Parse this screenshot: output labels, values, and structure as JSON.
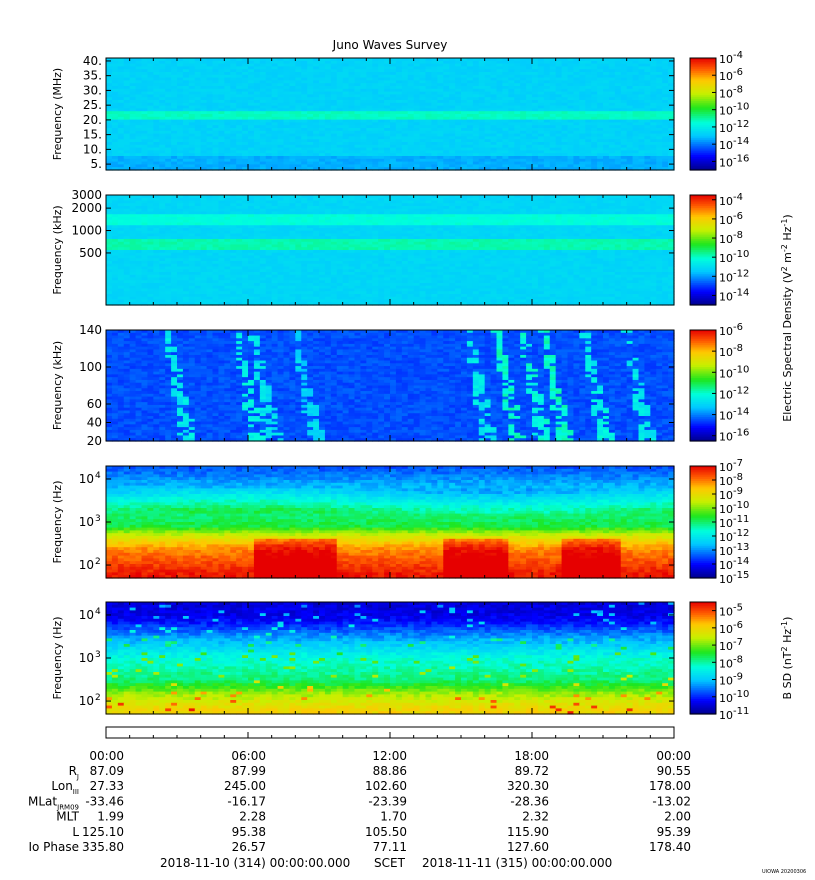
{
  "chart_data": {
    "type": "heatmap",
    "title": "Juno Waves Survey",
    "x_ticks": [
      "00:00",
      "06:00",
      "12:00",
      "18:00",
      "00:00"
    ],
    "panels": [
      {
        "ylabel": "Frequency (MHz)",
        "yticks": [
          "40.",
          "35.",
          "30.",
          "25.",
          "20.",
          "15.",
          "10.",
          "5."
        ],
        "ylim": [
          3,
          41
        ],
        "yscale": "linear",
        "colorbar": {
          "exponents": [
            "-4",
            "-6",
            "-8",
            "-10",
            "-12",
            "-14",
            "-16"
          ],
          "base": "10",
          "range_exp": [
            -17,
            -4
          ]
        },
        "background_level": -12.8,
        "bands": [
          {
            "center": 21.5,
            "width": 1.5,
            "level": -11.3
          }
        ]
      },
      {
        "ylabel": "Frequency (kHz)",
        "yticks": [
          "3000",
          "2000",
          "1000",
          "500"
        ],
        "ylim": [
          100,
          3000
        ],
        "yscale": "log",
        "colorbar": {
          "exponents": [
            "-4",
            "-6",
            "-8",
            "-10",
            "-12",
            "-14"
          ],
          "base": "10",
          "range_exp": [
            -15,
            -3.5
          ],
          "label": "Electric Spectral Density (V",
          "label_sup1": "2",
          "label_mid": " m",
          "label_sup2": "-2",
          "label_mid2": " Hz",
          "label_sup3": "-1",
          "label_end": ")"
        },
        "background_level": -11.2,
        "bands": [
          {
            "center": 1400,
            "width": 0.06,
            "level": -10.2
          },
          {
            "center": 650,
            "width": 0.07,
            "level": -9.8
          }
        ]
      },
      {
        "ylabel": "Frequency (kHz)",
        "yticks": [
          "140",
          "100",
          "60",
          "40",
          "20"
        ],
        "ylim": [
          20,
          140
        ],
        "yscale": "linear",
        "colorbar": {
          "exponents": [
            "-6",
            "-8",
            "-10",
            "-12",
            "-14",
            "-16"
          ],
          "base": "10",
          "range_exp": [
            -16.5,
            -6
          ]
        },
        "background_level": -14.5,
        "bursts": [
          {
            "t": 2.6,
            "level": -12.6
          },
          {
            "t": 5.5,
            "level": -12.4
          },
          {
            "t": 6.2,
            "level": -12.8
          },
          {
            "t": 8.0,
            "level": -13.0
          },
          {
            "t": 15.3,
            "level": -12.6
          },
          {
            "t": 16.5,
            "level": -12.0
          },
          {
            "t": 17.6,
            "level": -12.2
          },
          {
            "t": 18.5,
            "level": -12.0
          },
          {
            "t": 20.2,
            "level": -12.4
          },
          {
            "t": 22.0,
            "level": -12.6
          }
        ]
      },
      {
        "ylabel": "Frequency (Hz)",
        "yticks": [
          "10",
          "10",
          "10"
        ],
        "ytick_exp": [
          "4",
          "3",
          "2"
        ],
        "ylim": [
          50,
          20000
        ],
        "yscale": "log",
        "colorbar": {
          "exponents": [
            "-7",
            "-8",
            "-9",
            "-10",
            "-11",
            "-12",
            "-13",
            "-14",
            "-15"
          ],
          "base": "10",
          "range_exp": [
            -15,
            -7
          ]
        },
        "levels_by_freq": [
          {
            "f": 20000,
            "level": -13.5
          },
          {
            "f": 5000,
            "level": -12.5
          },
          {
            "f": 2000,
            "level": -11.2
          },
          {
            "f": 800,
            "level": -10.8
          },
          {
            "f": 500,
            "level": -9.5
          },
          {
            "f": 250,
            "level": -8.2
          },
          {
            "f": 60,
            "level": -7.2
          }
        ],
        "quiet_intervals": [
          [
            6.3,
            9.7
          ],
          [
            14.2,
            17.0
          ],
          [
            19.2,
            21.8
          ]
        ]
      },
      {
        "ylabel": "Frequency (Hz)",
        "yticks": [
          "10",
          "10",
          "10"
        ],
        "ytick_exp": [
          "4",
          "3",
          "2"
        ],
        "ylim": [
          50,
          20000
        ],
        "yscale": "log",
        "colorbar": {
          "exponents": [
            "-5",
            "-6",
            "-7",
            "-8",
            "-9",
            "-10",
            "-11"
          ],
          "base": "10",
          "range_exp": [
            -11,
            -4.5
          ],
          "label": "B SD (nT",
          "label_sup1": "2",
          "label_mid": " Hz",
          "label_sup2": "-1",
          "label_end": ")"
        },
        "levels_by_freq": [
          {
            "f": 20000,
            "level": -10.5
          },
          {
            "f": 8000,
            "level": -10.3
          },
          {
            "f": 3000,
            "level": -9.3
          },
          {
            "f": 1000,
            "level": -8.3
          },
          {
            "f": 300,
            "level": -7.8
          },
          {
            "f": 150,
            "level": -6.8
          },
          {
            "f": 60,
            "level": -6.0
          }
        ]
      }
    ],
    "ephemeris": {
      "rows": [
        {
          "label": "R",
          "sub": "J",
          "values": [
            "87.09",
            "87.99",
            "88.86",
            "89.72",
            "90.55"
          ]
        },
        {
          "label": "Lon",
          "sub": "III",
          "values": [
            "27.33",
            "245.00",
            "102.60",
            "320.30",
            "178.00"
          ]
        },
        {
          "label": "MLat",
          "sub": "JRM09",
          "values": [
            "-33.46",
            "-16.17",
            "-23.39",
            "-28.36",
            "-13.02"
          ]
        },
        {
          "label": "MLT",
          "sub": "",
          "values": [
            "1.99",
            "2.28",
            "1.70",
            "2.32",
            "2.00"
          ]
        },
        {
          "label": "L",
          "sub": "",
          "values": [
            "125.10",
            "95.38",
            "105.50",
            "115.90",
            "95.39"
          ]
        },
        {
          "label": "Io Phase",
          "sub": "",
          "values": [
            "335.80",
            "26.57",
            "77.11",
            "127.60",
            "178.40"
          ]
        }
      ]
    },
    "footer": {
      "start": "2018-11-10 (314) 00:00:00.000",
      "scet": "SCET",
      "end": "2018-11-11 (315) 00:00:00.000",
      "stamp": "UIOWA 20200306"
    }
  }
}
